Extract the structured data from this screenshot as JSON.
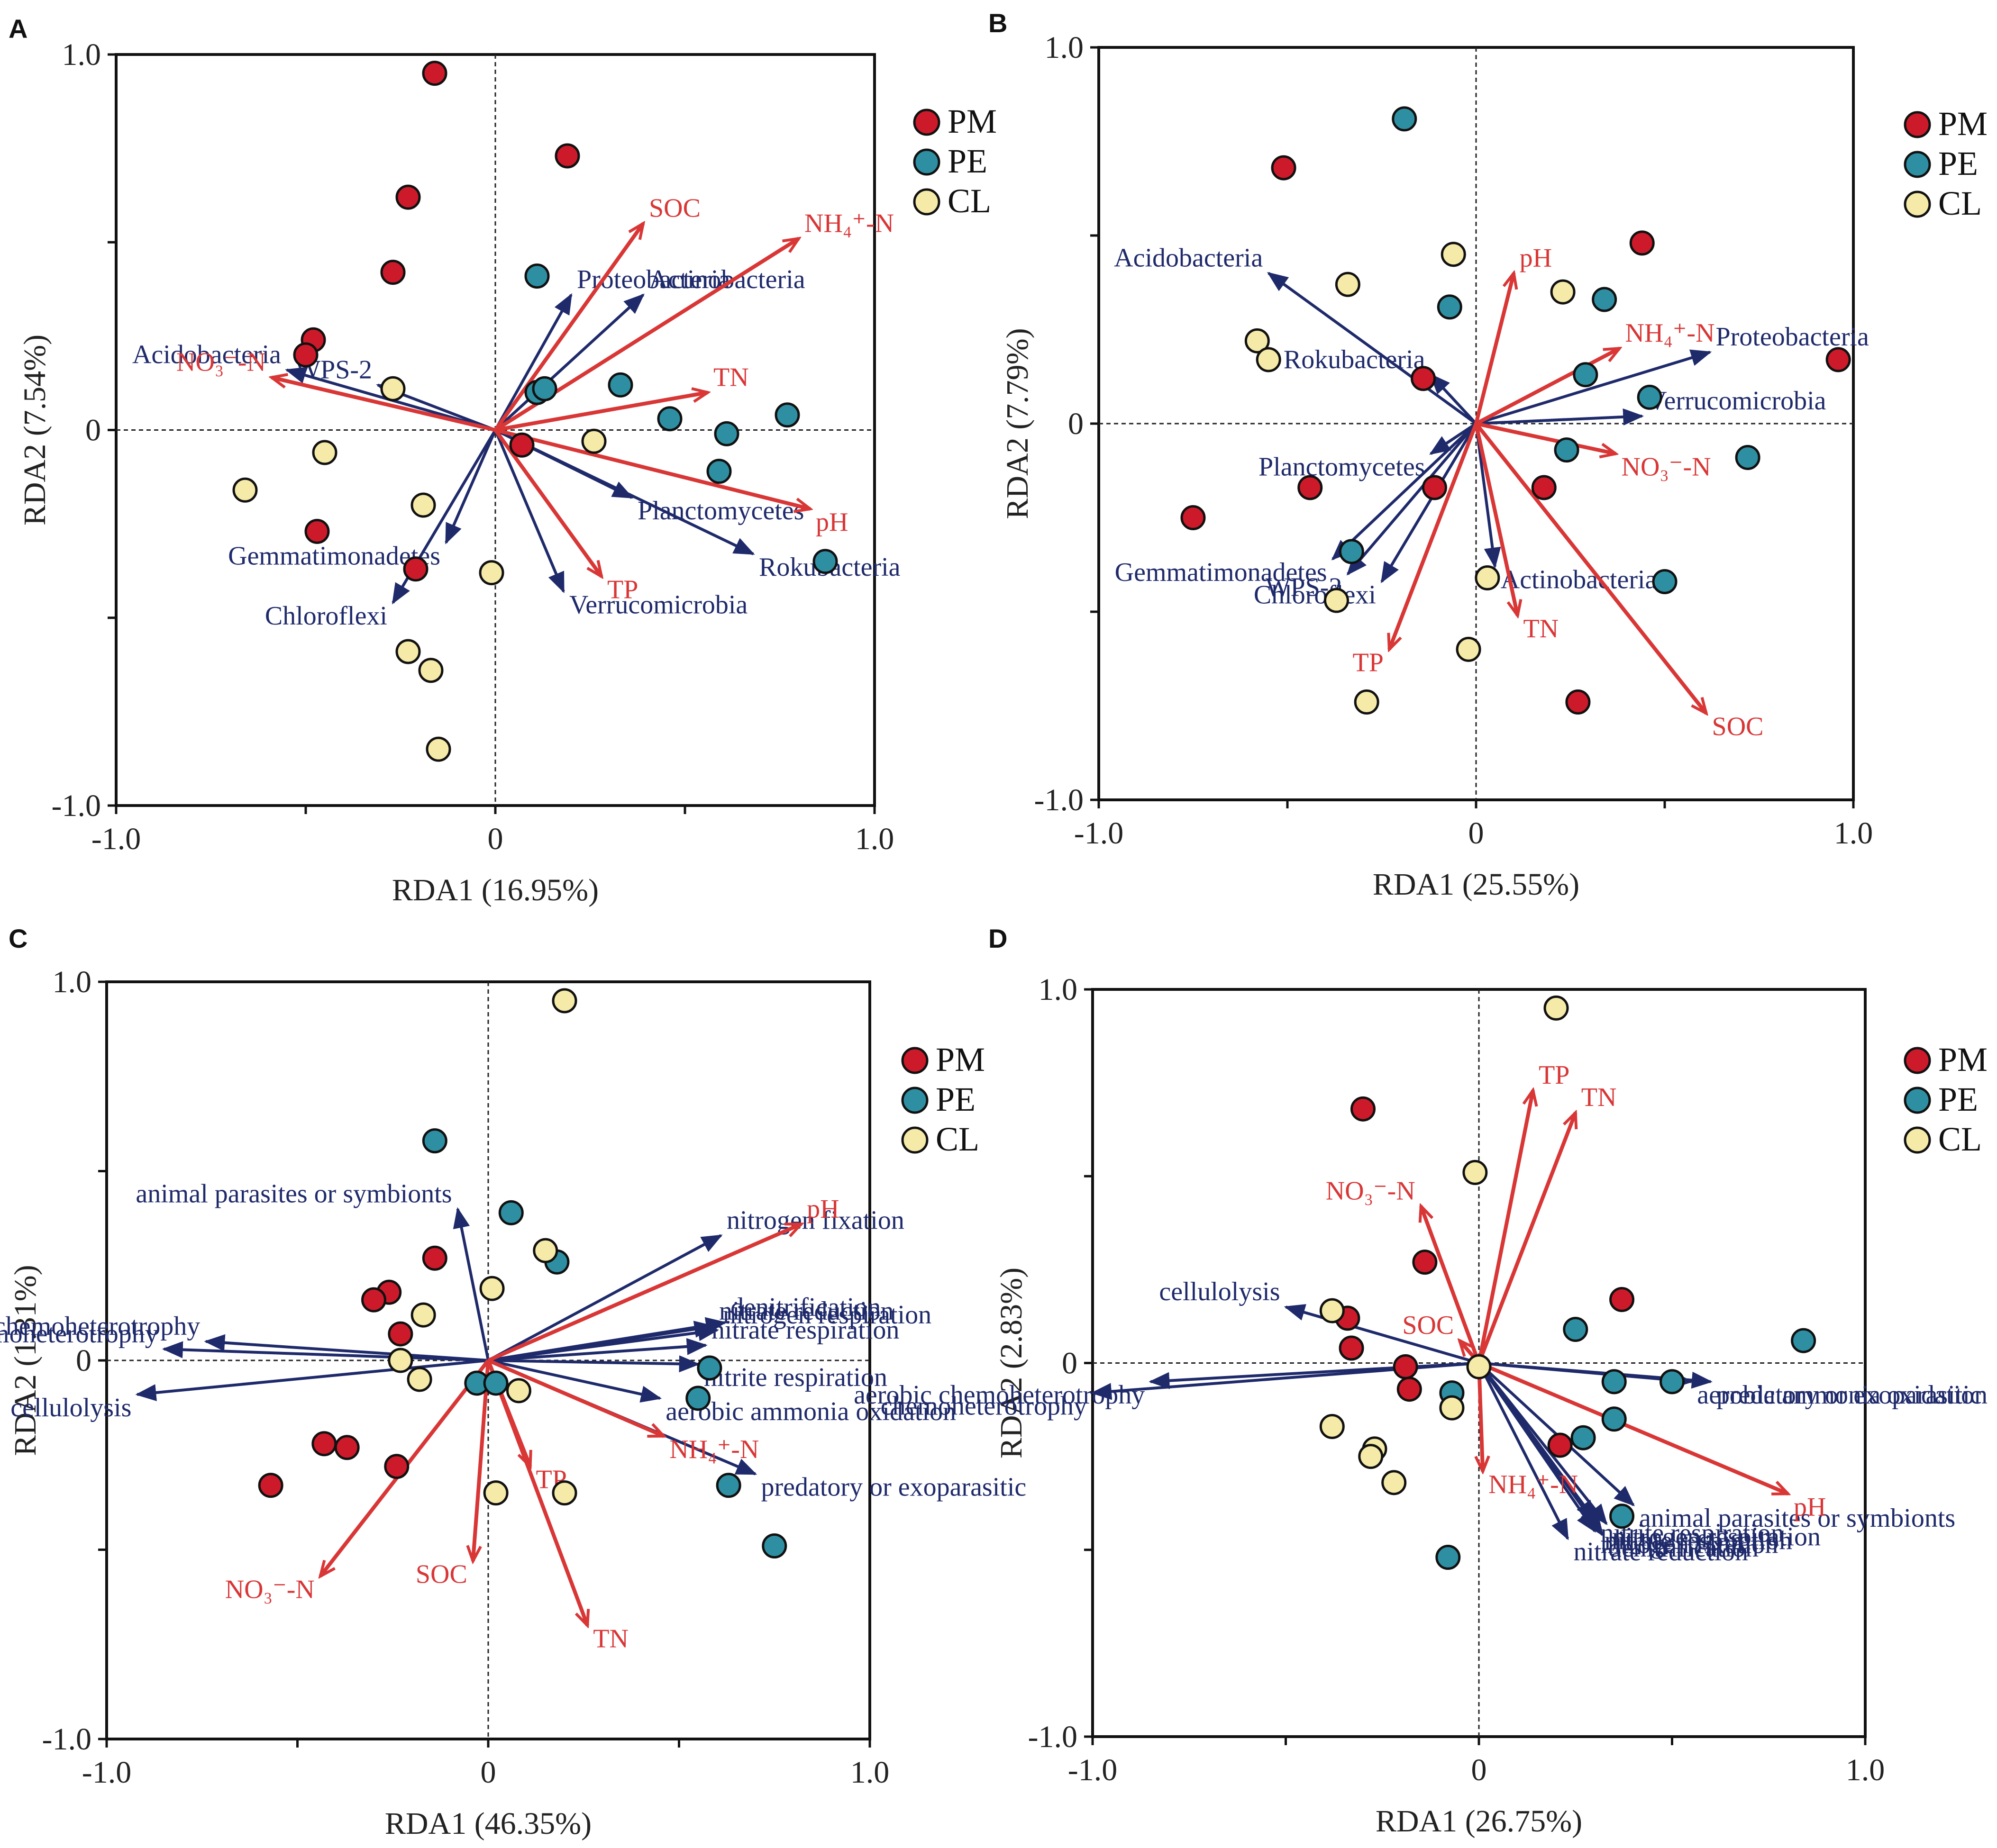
{
  "colors": {
    "PM": "#cc1a2a",
    "PE": "#2e8fa2",
    "CL": "#f6eaa8",
    "bio_arrow": "#1f2a6b",
    "env_arrow": "#d93636",
    "axis": "#111111"
  },
  "legend": {
    "PM": "PM",
    "PE": "PE",
    "CL": "CL"
  },
  "chart_data": [
    {
      "panel": "A",
      "type": "scatter",
      "xlabel": "RDA1 (16.95%)",
      "ylabel": "RDA2 (7.54%)",
      "xlim": [
        -1.0,
        1.0
      ],
      "ylim": [
        -1.0,
        1.0
      ],
      "xticks": [
        "-1.0",
        "0",
        "1.0"
      ],
      "yticks": [
        "1.0",
        "0",
        "-1.0"
      ],
      "points": {
        "PM": [
          [
            -0.16,
            0.95
          ],
          [
            0.19,
            0.73
          ],
          [
            -0.23,
            0.62
          ],
          [
            -0.27,
            0.42
          ],
          [
            -0.48,
            0.24
          ],
          [
            -0.5,
            0.2
          ],
          [
            -0.47,
            -0.27
          ],
          [
            -0.21,
            -0.37
          ],
          [
            0.07,
            -0.04
          ]
        ],
        "PE": [
          [
            0.11,
            0.41
          ],
          [
            0.11,
            0.1
          ],
          [
            0.13,
            0.11
          ],
          [
            0.33,
            0.12
          ],
          [
            0.46,
            0.03
          ],
          [
            0.77,
            0.04
          ],
          [
            0.61,
            -0.01
          ],
          [
            0.59,
            -0.11
          ],
          [
            0.87,
            -0.35
          ]
        ],
        "CL": [
          [
            -0.27,
            0.11
          ],
          [
            -0.45,
            -0.06
          ],
          [
            -0.66,
            -0.16
          ],
          [
            -0.19,
            -0.2
          ],
          [
            0.26,
            -0.03
          ],
          [
            -0.01,
            -0.38
          ],
          [
            -0.23,
            -0.59
          ],
          [
            -0.17,
            -0.64
          ],
          [
            -0.15,
            -0.85
          ]
        ]
      },
      "bio_vectors": [
        {
          "name": "Proteobacteria",
          "x": 0.2,
          "y": 0.36
        },
        {
          "name": "Actinobacteria",
          "x": 0.39,
          "y": 0.36
        },
        {
          "name": "Acidobacteria",
          "x": -0.55,
          "y": 0.16
        },
        {
          "name": "WPS-2",
          "x": -0.31,
          "y": 0.12
        },
        {
          "name": "Planctomycetes",
          "x": 0.36,
          "y": -0.18
        },
        {
          "name": "Rokubacteria",
          "x": 0.68,
          "y": -0.33
        },
        {
          "name": "Gemmatimonadetes",
          "x": -0.13,
          "y": -0.3
        },
        {
          "name": "Chloroflexi",
          "x": -0.27,
          "y": -0.46
        },
        {
          "name": "Verrucomicrobia",
          "x": 0.18,
          "y": -0.43
        }
      ],
      "env_vectors": [
        {
          "name": "SOC",
          "x": 0.39,
          "y": 0.55
        },
        {
          "name": "NH₄⁺-N",
          "x": 0.8,
          "y": 0.51
        },
        {
          "name": "NO₃⁻-N",
          "x": -0.59,
          "y": 0.14
        },
        {
          "name": "TN",
          "x": 0.56,
          "y": 0.1
        },
        {
          "name": "pH",
          "x": 0.83,
          "y": -0.21
        },
        {
          "name": "TP",
          "x": 0.28,
          "y": -0.39
        }
      ]
    },
    {
      "panel": "B",
      "type": "scatter",
      "xlabel": "RDA1 (25.55%)",
      "ylabel": "RDA2 (7.79%)",
      "xlim": [
        -1.0,
        1.0
      ],
      "ylim": [
        -1.0,
        1.0
      ],
      "xticks": [
        "-1.0",
        "0",
        "1.0"
      ],
      "yticks": [
        "1.0",
        "0",
        "-1.0"
      ],
      "points": {
        "PM": [
          [
            -0.51,
            0.68
          ],
          [
            0.44,
            0.48
          ],
          [
            0.96,
            0.17
          ],
          [
            -0.14,
            0.12
          ],
          [
            -0.44,
            -0.17
          ],
          [
            -0.75,
            -0.25
          ],
          [
            -0.11,
            -0.17
          ],
          [
            0.18,
            -0.17
          ],
          [
            0.27,
            -0.74
          ]
        ],
        "PE": [
          [
            -0.19,
            0.81
          ],
          [
            -0.07,
            0.31
          ],
          [
            0.34,
            0.33
          ],
          [
            0.29,
            0.13
          ],
          [
            0.46,
            0.07
          ],
          [
            0.24,
            -0.07
          ],
          [
            0.72,
            -0.09
          ],
          [
            -0.33,
            -0.34
          ],
          [
            0.5,
            -0.42
          ]
        ],
        "CL": [
          [
            -0.06,
            0.45
          ],
          [
            -0.34,
            0.37
          ],
          [
            0.23,
            0.35
          ],
          [
            -0.58,
            0.22
          ],
          [
            -0.55,
            0.17
          ],
          [
            0.03,
            -0.41
          ],
          [
            -0.37,
            -0.47
          ],
          [
            -0.02,
            -0.6
          ],
          [
            -0.29,
            -0.74
          ]
        ]
      },
      "bio_vectors": [
        {
          "name": "Acidobacteria",
          "x": -0.55,
          "y": 0.4
        },
        {
          "name": "Proteobacteria",
          "x": 0.62,
          "y": 0.19
        },
        {
          "name": "Rokubacteria",
          "x": -0.12,
          "y": 0.13
        },
        {
          "name": "Planctomycetes",
          "x": -0.12,
          "y": -0.08
        },
        {
          "name": "Verrucomicrobia",
          "x": 0.44,
          "y": 0.02
        },
        {
          "name": "Gemmatimonadetes",
          "x": -0.38,
          "y": -0.36
        },
        {
          "name": "WPS-2",
          "x": -0.34,
          "y": -0.4
        },
        {
          "name": "Chloroflexi",
          "x": -0.25,
          "y": -0.42
        },
        {
          "name": "Actinobacteria",
          "x": 0.05,
          "y": -0.38
        }
      ],
      "env_vectors": [
        {
          "name": "pH",
          "x": 0.1,
          "y": 0.4
        },
        {
          "name": "NH₄⁺-N",
          "x": 0.38,
          "y": 0.2
        },
        {
          "name": "NO₃⁻-N",
          "x": 0.37,
          "y": -0.08
        },
        {
          "name": "TN",
          "x": 0.11,
          "y": -0.51
        },
        {
          "name": "TP",
          "x": -0.23,
          "y": -0.6
        },
        {
          "name": "SOC",
          "x": 0.61,
          "y": -0.77
        }
      ]
    },
    {
      "panel": "C",
      "type": "scatter",
      "xlabel": "RDA1 (46.35%)",
      "ylabel": "RDA2 (1.31%)",
      "xlim": [
        -1.0,
        1.0
      ],
      "ylim": [
        -1.0,
        1.0
      ],
      "xticks": [
        "-1.0",
        "0",
        "1.0"
      ],
      "yticks": [
        "1.0",
        "0",
        "-1.0"
      ],
      "points": {
        "PM": [
          [
            -0.14,
            0.27
          ],
          [
            -0.26,
            0.18
          ],
          [
            -0.3,
            0.16
          ],
          [
            -0.23,
            0.07
          ],
          [
            -0.43,
            -0.22
          ],
          [
            -0.37,
            -0.23
          ],
          [
            -0.24,
            -0.28
          ],
          [
            -0.57,
            -0.33
          ]
        ],
        "PE": [
          [
            -0.14,
            0.58
          ],
          [
            0.06,
            0.39
          ],
          [
            0.18,
            0.26
          ],
          [
            0.58,
            -0.02
          ],
          [
            0.55,
            -0.1
          ],
          [
            -0.03,
            -0.06
          ],
          [
            0.02,
            -0.06
          ],
          [
            0.63,
            -0.33
          ],
          [
            0.75,
            -0.49
          ]
        ],
        "CL": [
          [
            0.2,
            0.95
          ],
          [
            0.15,
            0.29
          ],
          [
            0.01,
            0.19
          ],
          [
            -0.17,
            0.12
          ],
          [
            -0.23,
            0.0
          ],
          [
            -0.18,
            -0.05
          ],
          [
            0.08,
            -0.08
          ],
          [
            0.02,
            -0.35
          ],
          [
            0.2,
            -0.35
          ]
        ]
      },
      "bio_vectors": [
        {
          "name": "animal parasites or symbionts",
          "x": -0.08,
          "y": 0.4
        },
        {
          "name": "nitrogen fixation",
          "x": 0.61,
          "y": 0.33
        },
        {
          "name": "aerobic chemoheterotrophy",
          "x": -0.74,
          "y": 0.05
        },
        {
          "name": "chemoheterotrophy",
          "x": -0.85,
          "y": 0.03
        },
        {
          "name": "cellulolysis",
          "x": -0.92,
          "y": -0.09
        },
        {
          "name": "aerobic ammonia oxidation",
          "x": 0.45,
          "y": -0.1
        },
        {
          "name": "denitrification",
          "x": 0.62,
          "y": 0.1
        },
        {
          "name": "nitrate reduction",
          "x": 0.59,
          "y": 0.09
        },
        {
          "name": "nitrogen respiration",
          "x": 0.6,
          "y": 0.08
        },
        {
          "name": "nitrate respiration",
          "x": 0.57,
          "y": 0.04
        },
        {
          "name": "nitrite respiration",
          "x": 0.55,
          "y": -0.01
        },
        {
          "name": "predatory or exoparasitic",
          "x": 0.7,
          "y": -0.3
        }
      ],
      "env_vectors": [
        {
          "name": "pH",
          "x": 0.82,
          "y": 0.36
        },
        {
          "name": "NH₄⁺-N",
          "x": 0.46,
          "y": -0.2
        },
        {
          "name": "TP",
          "x": 0.11,
          "y": -0.28
        },
        {
          "name": "SOC",
          "x": -0.04,
          "y": -0.53
        },
        {
          "name": "TN",
          "x": 0.26,
          "y": -0.7
        },
        {
          "name": "NO₃⁻-N",
          "x": -0.44,
          "y": -0.57
        }
      ]
    },
    {
      "panel": "D",
      "type": "scatter",
      "xlabel": "RDA1 (26.75%)",
      "ylabel": "RDA2 (2.83%)",
      "xlim": [
        -1.0,
        1.0
      ],
      "ylim": [
        -1.0,
        1.0
      ],
      "xticks": [
        "-1.0",
        "0",
        "1.0"
      ],
      "yticks": [
        "1.0",
        "0",
        "-1.0"
      ],
      "points": {
        "PM": [
          [
            -0.3,
            0.68
          ],
          [
            -0.14,
            0.27
          ],
          [
            0.37,
            0.17
          ],
          [
            -0.34,
            0.12
          ],
          [
            -0.33,
            0.04
          ],
          [
            -0.19,
            -0.01
          ],
          [
            -0.18,
            -0.07
          ],
          [
            0.21,
            -0.22
          ]
        ],
        "PE": [
          [
            0.25,
            0.09
          ],
          [
            0.84,
            0.06
          ],
          [
            0.35,
            -0.05
          ],
          [
            0.5,
            -0.05
          ],
          [
            -0.07,
            -0.08
          ],
          [
            0.35,
            -0.15
          ],
          [
            0.27,
            -0.2
          ],
          [
            0.37,
            -0.41
          ],
          [
            -0.08,
            -0.52
          ]
        ],
        "CL": [
          [
            0.2,
            0.95
          ],
          [
            -0.01,
            0.51
          ],
          [
            -0.38,
            0.14
          ],
          [
            0.0,
            -0.01
          ],
          [
            -0.07,
            -0.12
          ],
          [
            -0.38,
            -0.17
          ],
          [
            -0.27,
            -0.23
          ],
          [
            -0.28,
            -0.25
          ],
          [
            -0.22,
            -0.32
          ]
        ]
      },
      "bio_vectors": [
        {
          "name": "cellulolysis",
          "x": -0.5,
          "y": 0.15
        },
        {
          "name": "chemoheterotrophy",
          "x": -1.0,
          "y": -0.08
        },
        {
          "name": "aerobic chemoheterotrophy",
          "x": -0.85,
          "y": -0.05
        },
        {
          "name": "aerobic ammonia oxidation",
          "x": 0.55,
          "y": -0.05
        },
        {
          "name": "predatory or exoparasitic",
          "x": 0.6,
          "y": -0.05
        },
        {
          "name": "animal parasites or symbionts",
          "x": 0.4,
          "y": -0.38
        },
        {
          "name": "nitrate reduction",
          "x": 0.23,
          "y": -0.47
        },
        {
          "name": "nitrogen fixation",
          "x": 0.3,
          "y": -0.45
        },
        {
          "name": "denitrification",
          "x": 0.32,
          "y": -0.46
        },
        {
          "name": "nitrogen respiration",
          "x": 0.33,
          "y": -0.43
        },
        {
          "name": "nitrate respiration",
          "x": 0.31,
          "y": -0.44
        },
        {
          "name": "nitrite respiration",
          "x": 0.3,
          "y": -0.42
        }
      ],
      "env_vectors": [
        {
          "name": "TP",
          "x": 0.14,
          "y": 0.73
        },
        {
          "name": "TN",
          "x": 0.25,
          "y": 0.67
        },
        {
          "name": "NO₃⁻-N",
          "x": -0.15,
          "y": 0.42
        },
        {
          "name": "SOC",
          "x": -0.05,
          "y": 0.06
        },
        {
          "name": "NH₄⁺-N",
          "x": 0.01,
          "y": -0.29
        },
        {
          "name": "pH",
          "x": 0.8,
          "y": -0.35
        }
      ]
    }
  ]
}
